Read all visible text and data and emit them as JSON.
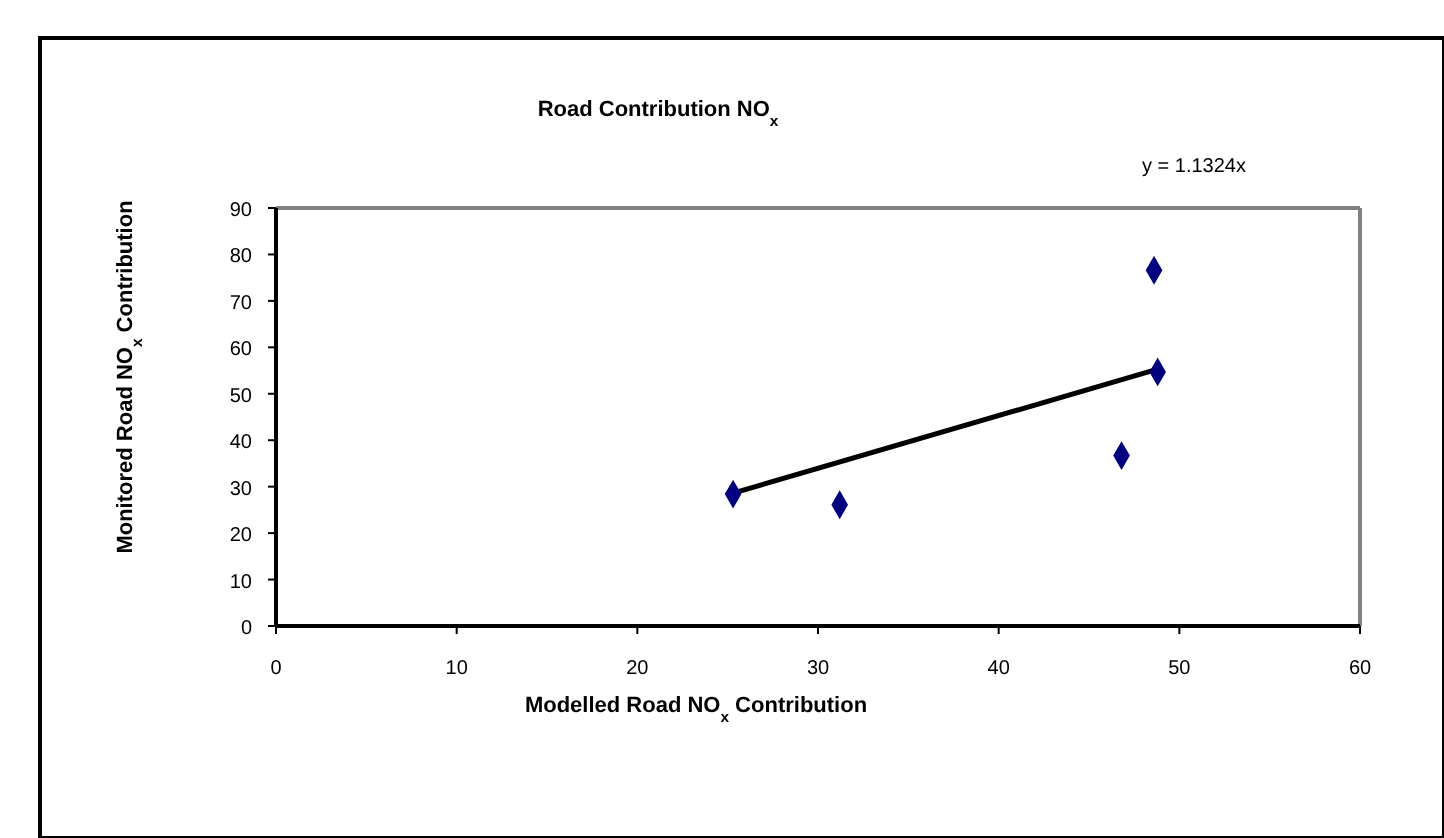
{
  "chart_data": {
    "type": "scatter",
    "title": "Road Contribution NO$_{x}$",
    "xlabel": "Modelled Road NO$_{x}$ Contribution",
    "ylabel": "Monitored Road NO$_{x}$ Contribution",
    "series": [
      {
        "marker": "diamond",
        "color": "#000080",
        "x": [
          25.3,
          31.2,
          46.8,
          48.6,
          48.8
        ],
        "values": [
          28.4,
          26.1,
          36.7,
          76.6,
          54.7
        ]
      },
      {
        "type": "line",
        "color": "#000000",
        "x": [
          25.3,
          48.8
        ],
        "values": [
          28.6,
          55.3
        ]
      }
    ],
    "annotations": [
      "y = 1.1324x"
    ],
    "xlim": [
      0,
      60
    ],
    "xticks": [
      0,
      10,
      20,
      30,
      40,
      50,
      60
    ],
    "ylim": [
      0,
      90
    ],
    "yticks": [
      0,
      10,
      20,
      30,
      40,
      50,
      60,
      70,
      80,
      90
    ]
  }
}
